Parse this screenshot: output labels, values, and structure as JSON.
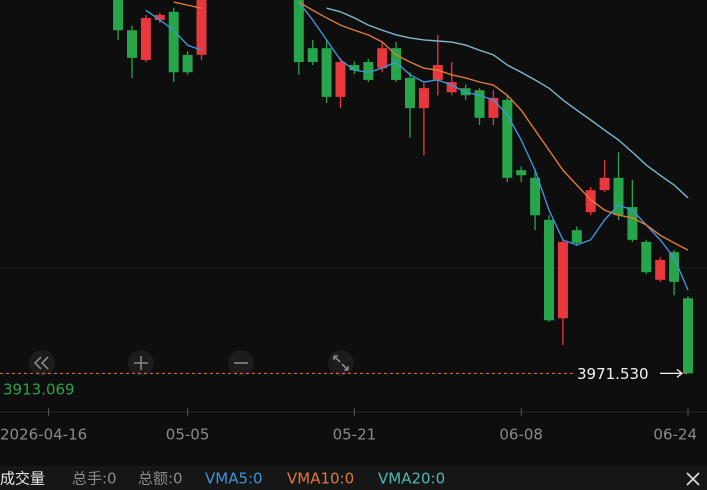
{
  "chart_data": {
    "type": "candlestick",
    "x": [
      "2026-04-16",
      null,
      null,
      null,
      null,
      null,
      null,
      null,
      null,
      null,
      "05-05",
      null,
      null,
      null,
      null,
      null,
      null,
      null,
      null,
      null,
      null,
      null,
      "05-21",
      null,
      null,
      null,
      null,
      null,
      null,
      null,
      null,
      null,
      null,
      null,
      "06-08",
      null,
      null,
      null,
      null,
      null,
      null,
      null,
      null,
      null,
      null,
      null,
      "06-24"
    ],
    "open": [
      null,
      null,
      null,
      null,
      null,
      4710,
      4641,
      4583,
      4661,
      4677,
      4593,
      4593,
      null,
      null,
      null,
      null,
      null,
      null,
      4700,
      4606,
      4606,
      4511,
      4573,
      4579,
      4567,
      4606,
      4548,
      4489,
      4544,
      4520,
      4528,
      4524,
      4470,
      4505,
      4368,
      4353,
      4271,
      4079,
      4251,
      4286,
      4329,
      4353,
      4296,
      4228,
      4154,
      4208,
      4118
    ],
    "high": [
      null,
      null,
      null,
      null,
      null,
      4719,
      4650,
      4671,
      4675,
      4685,
      4600,
      4710,
      null,
      null,
      null,
      null,
      null,
      null,
      4715,
      4622,
      4622,
      4587,
      4580,
      4585,
      4618,
      4618,
      4559,
      4540,
      4632,
      4579,
      4535,
      4528,
      4524,
      4514,
      4375,
      4368,
      4280,
      4232,
      4258,
      4335,
      4388,
      4403,
      4349,
      4232,
      4198,
      4212,
      4122
    ],
    "low": [
      null,
      null,
      null,
      null,
      null,
      4622,
      4548,
      4579,
      4655,
      4540,
      4554,
      4583,
      null,
      null,
      null,
      null,
      null,
      null,
      4554,
      4573,
      4499,
      4489,
      4555,
      4540,
      4559,
      4540,
      4431,
      4397,
      4514,
      4514,
      4505,
      4456,
      4456,
      4345,
      4345,
      4251,
      4072,
      4027,
      4220,
      4280,
      4325,
      4271,
      4228,
      4165,
      4150,
      4124,
      3971.53
    ],
    "close": [
      null,
      null,
      null,
      null,
      null,
      4641,
      4587,
      4665,
      4671,
      4559,
      4559,
      4700,
      null,
      null,
      null,
      null,
      null,
      null,
      4579,
      4579,
      4511,
      4579,
      4563,
      4544,
      4606,
      4544,
      4489,
      4528,
      4573,
      4540,
      4514,
      4470,
      4509,
      4353,
      4358,
      4280,
      4075,
      4228,
      4226,
      4329,
      4353,
      4280,
      4232,
      4169,
      4193,
      4150,
      3971.53
    ],
    "up_color": "#e8383d",
    "down_color": "#27a54a",
    "lines": [
      {
        "color": "#3f93d9",
        "values": [
          null,
          null,
          null,
          null,
          null,
          null,
          null,
          4680,
          4661,
          4641,
          4612,
          4602,
          null,
          null,
          null,
          null,
          null,
          null,
          4696,
          4661,
          4622,
          4583,
          4563,
          4559,
          4567,
          4579,
          4554,
          4540,
          4544,
          4534,
          4520,
          4514,
          4505,
          4476,
          4427,
          4368,
          4290,
          4232,
          4222,
          4232,
          4271,
          4300,
          4290,
          4261,
          4232,
          4197,
          4134
        ]
      },
      {
        "color": "#e07a3c",
        "values": [
          null,
          null,
          null,
          null,
          null,
          null,
          null,
          null,
          null,
          4696,
          4690,
          4684,
          null,
          null,
          null,
          null,
          null,
          null,
          4696,
          4680,
          4665,
          4651,
          4641,
          4632,
          4618,
          4593,
          4579,
          4567,
          4563,
          4554,
          4548,
          4540,
          4534,
          4514,
          4485,
          4446,
          4407,
          4368,
          4339,
          4310,
          4290,
          4280,
          4275,
          4261,
          4241,
          4226,
          4212
        ]
      },
      {
        "color": "#7fb7cf",
        "values": [
          null,
          null,
          null,
          null,
          null,
          null,
          null,
          null,
          null,
          null,
          null,
          null,
          null,
          null,
          null,
          null,
          null,
          null,
          null,
          null,
          4684,
          4677,
          4665,
          4651,
          4641,
          4632,
          4626,
          4622,
          4620,
          4618,
          4612,
          4602,
          4593,
          4573,
          4559,
          4544,
          4528,
          4505,
          4485,
          4466,
          4446,
          4427,
          4403,
          4378,
          4358,
          4339,
          4314
        ]
      }
    ],
    "ylim": [
      3900,
      4700
    ],
    "last_price": {
      "value": 3971.53,
      "label": "3971.530"
    },
    "left_label": 3913.069,
    "volume_bar": {
      "title": "成交量",
      "items": [
        {
          "text": "总手:0",
          "color": "#8a8a8a"
        },
        {
          "text": "总额:0",
          "color": "#8a8a8a"
        },
        {
          "text": "VMA5:0",
          "color": "#3f93d9"
        },
        {
          "text": "VMA10:0",
          "color": "#e07a3c"
        },
        {
          "text": "VMA20:0",
          "color": "#4fb8b0"
        }
      ]
    }
  }
}
